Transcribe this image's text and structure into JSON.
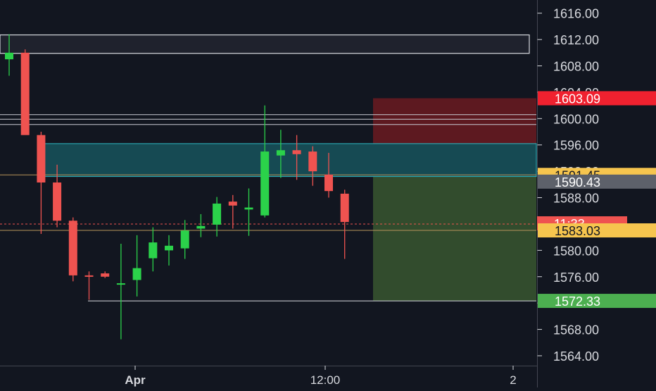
{
  "colors": {
    "background": "#121620",
    "axis_text": "#d7d9de",
    "bull": "#2bd24a",
    "bear": "#ef5350",
    "risk_zone": "#6b1a21",
    "target_zone": "#36522f",
    "supply_zone": "#1c8a92",
    "range_box": "#2a2e38"
  },
  "chart_data": {
    "type": "candlestick",
    "ylim": [
      1562.5,
      1618
    ],
    "y_ticks": [
      "1616.00",
      "1612.00",
      "1608.00",
      "1604.00",
      "1600.00",
      "1596.00",
      "1592.00",
      "1588.00",
      "1584.00",
      "1580.00",
      "1576.00",
      "1572.00",
      "1568.00",
      "1564.00"
    ],
    "x_labels": [
      "Apr",
      "12:00",
      "2"
    ],
    "candles": [
      {
        "o": 1609.0,
        "h": 1612.8,
        "l": 1606.5,
        "c": 1610.0
      },
      {
        "o": 1610.0,
        "h": 1610.5,
        "l": 1597.8,
        "c": 1597.5
      },
      {
        "o": 1597.5,
        "h": 1598.0,
        "l": 1582.5,
        "c": 1590.3
      },
      {
        "o": 1590.3,
        "h": 1593.0,
        "l": 1583.5,
        "c": 1584.5
      },
      {
        "o": 1584.5,
        "h": 1585.0,
        "l": 1575.3,
        "c": 1576.2
      },
      {
        "o": 1576.2,
        "h": 1576.8,
        "l": 1572.5,
        "c": 1576.0
      },
      {
        "o": 1576.5,
        "h": 1576.8,
        "l": 1575.8,
        "c": 1576.0
      },
      {
        "o": 1574.8,
        "h": 1581.0,
        "l": 1566.5,
        "c": 1575.0
      },
      {
        "o": 1575.5,
        "h": 1582.3,
        "l": 1573.0,
        "c": 1577.3
      },
      {
        "o": 1578.8,
        "h": 1583.5,
        "l": 1576.8,
        "c": 1581.2
      },
      {
        "o": 1580.0,
        "h": 1582.3,
        "l": 1577.7,
        "c": 1580.7
      },
      {
        "o": 1580.3,
        "h": 1584.6,
        "l": 1578.7,
        "c": 1583.0
      },
      {
        "o": 1583.3,
        "h": 1585.5,
        "l": 1582.0,
        "c": 1583.7
      },
      {
        "o": 1583.9,
        "h": 1588.1,
        "l": 1582.1,
        "c": 1587.1
      },
      {
        "o": 1587.4,
        "h": 1588.4,
        "l": 1583.3,
        "c": 1586.8
      },
      {
        "o": 1586.2,
        "h": 1589.4,
        "l": 1582.2,
        "c": 1586.5
      },
      {
        "o": 1585.3,
        "h": 1602.0,
        "l": 1585.0,
        "c": 1595.0
      },
      {
        "o": 1594.4,
        "h": 1598.3,
        "l": 1591.0,
        "c": 1595.2
      },
      {
        "o": 1595.2,
        "h": 1597.5,
        "l": 1590.7,
        "c": 1594.6
      },
      {
        "o": 1595.0,
        "h": 1595.8,
        "l": 1589.8,
        "c": 1592.0
      },
      {
        "o": 1591.5,
        "h": 1594.8,
        "l": 1588.0,
        "c": 1589.0
      },
      {
        "o": 1588.6,
        "h": 1589.2,
        "l": 1578.7,
        "c": 1584.3
      }
    ],
    "zones": {
      "range_box": [
        1609.9,
        1612.7
      ],
      "supply_zone": [
        1591.2,
        1596.2
      ],
      "risk_zone": [
        1596.2,
        1603.09
      ],
      "target_zone": [
        1572.33,
        1591.2
      ]
    },
    "lines": [
      {
        "name": "resistance-line",
        "value": 1600.6,
        "color": "#c9ccd4"
      },
      {
        "name": "resistance-line",
        "value": 1599.9,
        "color": "#c9ccd4"
      },
      {
        "name": "resistance-line",
        "value": 1599.1,
        "color": "#c9ccd4"
      },
      {
        "name": "entry-level-line",
        "value": 1591.45,
        "color": "#b8955a"
      },
      {
        "name": "level-line",
        "value": 1583.03,
        "color": "#b8955a"
      },
      {
        "name": "current-price-line",
        "value": 1584.0,
        "color": "#ef5350",
        "dashed": true
      },
      {
        "name": "target-line",
        "value": 1572.33,
        "color": "#d7d9de"
      }
    ],
    "price_labels": [
      {
        "text": "1603.09",
        "value": 1603.09,
        "bg": "#f0212f",
        "fg": "#ffffff",
        "name": "stop-loss-price-label"
      },
      {
        "text": "1591.45",
        "value": 1591.45,
        "bg": "#f6c54e",
        "fg": "#131722",
        "name": "entry-price-label"
      },
      {
        "text": "1590.43",
        "value": 1590.43,
        "bg": "#5d616a",
        "fg": "#ffffff",
        "name": "zone-price-label"
      },
      {
        "text": "11:33",
        "value": 1584.1,
        "bg": "#ef5350",
        "fg": "#ffffff",
        "name": "countdown-label"
      },
      {
        "text": "1583.03",
        "value": 1583.03,
        "bg": "#f6c54e",
        "fg": "#131722",
        "name": "level-price-label"
      },
      {
        "text": "1572.33",
        "value": 1572.33,
        "bg": "#4caf50",
        "fg": "#ffffff",
        "name": "take-profit-price-label"
      }
    ]
  }
}
